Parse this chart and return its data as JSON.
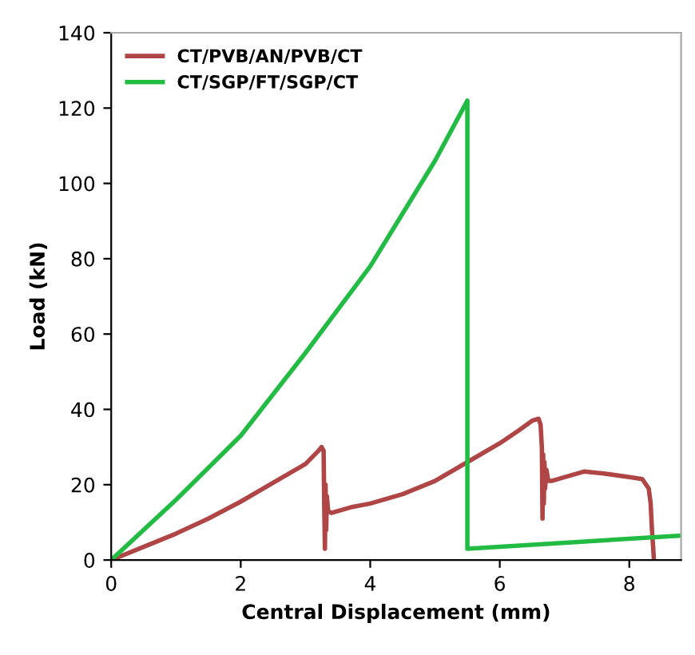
{
  "chart_data": {
    "type": "line",
    "xlabel": "Central Displacement (mm)",
    "ylabel": "Load (kN)",
    "xlim": [
      0,
      8.8
    ],
    "ylim": [
      0,
      140
    ],
    "xticks": [
      0,
      2,
      4,
      6,
      8
    ],
    "yticks": [
      0,
      20,
      40,
      60,
      80,
      100,
      120,
      140
    ],
    "grid": false,
    "legend": "top left",
    "marker": "none",
    "line_style": "solid",
    "series": [
      {
        "name": "CT/PVB/AN/PVB/CT",
        "color": "#b04545",
        "x": [
          0,
          0.5,
          1,
          1.5,
          2,
          2.5,
          3,
          3.2,
          3.25,
          3.28,
          3.29,
          3.3,
          3.31,
          3.32,
          3.33,
          3.35,
          3.4,
          3.7,
          4,
          4.5,
          5,
          5.5,
          6,
          6.3,
          6.5,
          6.6,
          6.63,
          6.65,
          6.66,
          6.67,
          6.68,
          6.69,
          6.7,
          6.72,
          6.75,
          6.8,
          7,
          7.3,
          7.6,
          8,
          8.2,
          8.3,
          8.33,
          8.35,
          8.37,
          8.38
        ],
        "values": [
          0,
          3.5,
          7,
          11,
          15.5,
          20.5,
          25.5,
          29,
          30,
          29,
          14,
          3,
          20,
          8,
          17,
          13,
          12.5,
          14,
          15,
          17.5,
          21,
          26,
          31,
          34.5,
          37,
          37.5,
          36,
          30,
          11,
          28,
          15,
          26,
          19,
          24,
          21,
          21,
          22,
          23.5,
          23,
          22,
          21.5,
          19,
          15,
          8,
          3,
          0
        ]
      },
      {
        "name": "CT/SGP/FT/SGP/CT",
        "color": "#22bb44",
        "x": [
          0,
          1,
          2,
          3,
          4,
          4.5,
          5,
          5.5,
          5.5,
          5.5,
          8.8
        ],
        "values": [
          0,
          16,
          33,
          55,
          78,
          92,
          106,
          122,
          61,
          3,
          6.5
        ]
      }
    ]
  }
}
